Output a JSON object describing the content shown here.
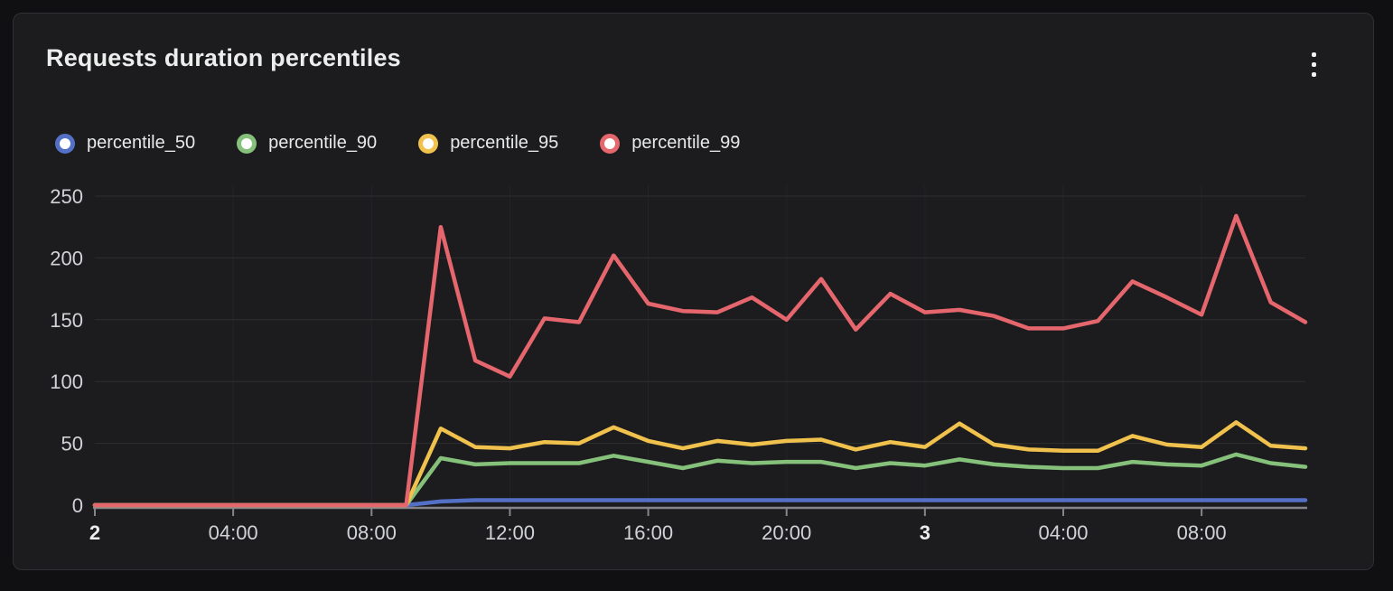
{
  "panel": {
    "title": "Requests duration percentiles",
    "menu_icon": "kebab-vertical-icon"
  },
  "legend": {
    "position": "top-left",
    "items": [
      {
        "label": "percentile_50",
        "color": "#5470c6"
      },
      {
        "label": "percentile_90",
        "color": "#85c17a"
      },
      {
        "label": "percentile_95",
        "color": "#f0c14d"
      },
      {
        "label": "percentile_99",
        "color": "#e6666d"
      }
    ]
  },
  "chart_data": {
    "type": "line",
    "title": "Requests duration percentiles",
    "xlabel": "",
    "ylabel": "",
    "grid": "horizontal",
    "ylim": [
      0,
      260
    ],
    "y_ticks": [
      0,
      50,
      100,
      150,
      200,
      250
    ],
    "x_unit": "hours from day 2 00:00, hourly points",
    "x_ticks": [
      {
        "label": "2",
        "hour": 0,
        "bold": true
      },
      {
        "label": "04:00",
        "hour": 4,
        "bold": false
      },
      {
        "label": "08:00",
        "hour": 8,
        "bold": false
      },
      {
        "label": "12:00",
        "hour": 12,
        "bold": false
      },
      {
        "label": "16:00",
        "hour": 16,
        "bold": false
      },
      {
        "label": "20:00",
        "hour": 20,
        "bold": false
      },
      {
        "label": "3",
        "hour": 24,
        "bold": true
      },
      {
        "label": "04:00",
        "hour": 28,
        "bold": false
      },
      {
        "label": "08:00",
        "hour": 32,
        "bold": false
      }
    ],
    "series": [
      {
        "name": "percentile_50",
        "color": "#5470c6",
        "values": [
          0,
          0,
          0,
          0,
          0,
          0,
          0,
          0,
          0,
          0,
          3,
          4,
          4,
          4,
          4,
          4,
          4,
          4,
          4,
          4,
          4,
          4,
          4,
          4,
          4,
          4,
          4,
          4,
          4,
          4,
          4,
          4,
          4,
          4,
          4,
          4
        ]
      },
      {
        "name": "percentile_90",
        "color": "#85c17a",
        "values": [
          0,
          0,
          0,
          0,
          0,
          0,
          0,
          0,
          0,
          0,
          38,
          33,
          34,
          34,
          34,
          40,
          35,
          30,
          36,
          34,
          35,
          35,
          30,
          34,
          32,
          37,
          33,
          31,
          30,
          30,
          35,
          33,
          32,
          41,
          34,
          31
        ]
      },
      {
        "name": "percentile_95",
        "color": "#f0c14d",
        "values": [
          0,
          0,
          0,
          0,
          0,
          0,
          0,
          0,
          0,
          0,
          62,
          47,
          46,
          51,
          50,
          63,
          52,
          46,
          52,
          49,
          52,
          53,
          45,
          51,
          47,
          66,
          49,
          45,
          44,
          44,
          56,
          49,
          47,
          67,
          48,
          46
        ]
      },
      {
        "name": "percentile_99",
        "color": "#e6666d",
        "values": [
          0,
          0,
          0,
          0,
          0,
          0,
          0,
          0,
          0,
          0,
          225,
          117,
          104,
          151,
          148,
          202,
          163,
          157,
          156,
          168,
          150,
          183,
          142,
          171,
          156,
          158,
          153,
          143,
          143,
          149,
          181,
          168,
          154,
          234,
          164,
          148
        ]
      }
    ]
  }
}
